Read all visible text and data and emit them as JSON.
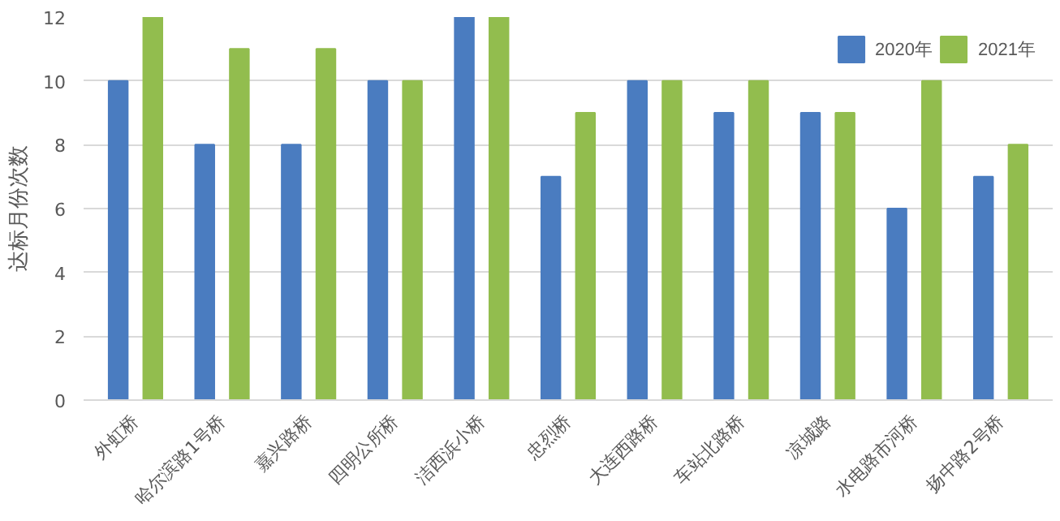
{
  "chart_data": {
    "type": "bar",
    "ylabel": "达标月份次数",
    "categories": [
      "外虹桥",
      "哈尔滨路1号桥",
      "嘉兴路桥",
      "四明公所桥",
      "洁西浜小桥",
      "忠烈桥",
      "大连西路桥",
      "车站北路桥",
      "凉城路",
      "水电路市河桥",
      "扬中路2号桥"
    ],
    "series": [
      {
        "name": "2020年",
        "color": "#4a7cc0",
        "values": [
          10,
          8,
          8,
          10,
          12,
          7,
          10,
          9,
          9,
          6,
          7
        ]
      },
      {
        "name": "2021年",
        "color": "#92bd4e",
        "values": [
          12,
          11,
          11,
          10,
          12,
          9,
          10,
          10,
          9,
          10,
          8
        ]
      }
    ],
    "ylim": [
      0,
      12
    ],
    "yticks": [
      0,
      2,
      4,
      6,
      8,
      10,
      12
    ],
    "grid": "y",
    "legend": "top right"
  }
}
